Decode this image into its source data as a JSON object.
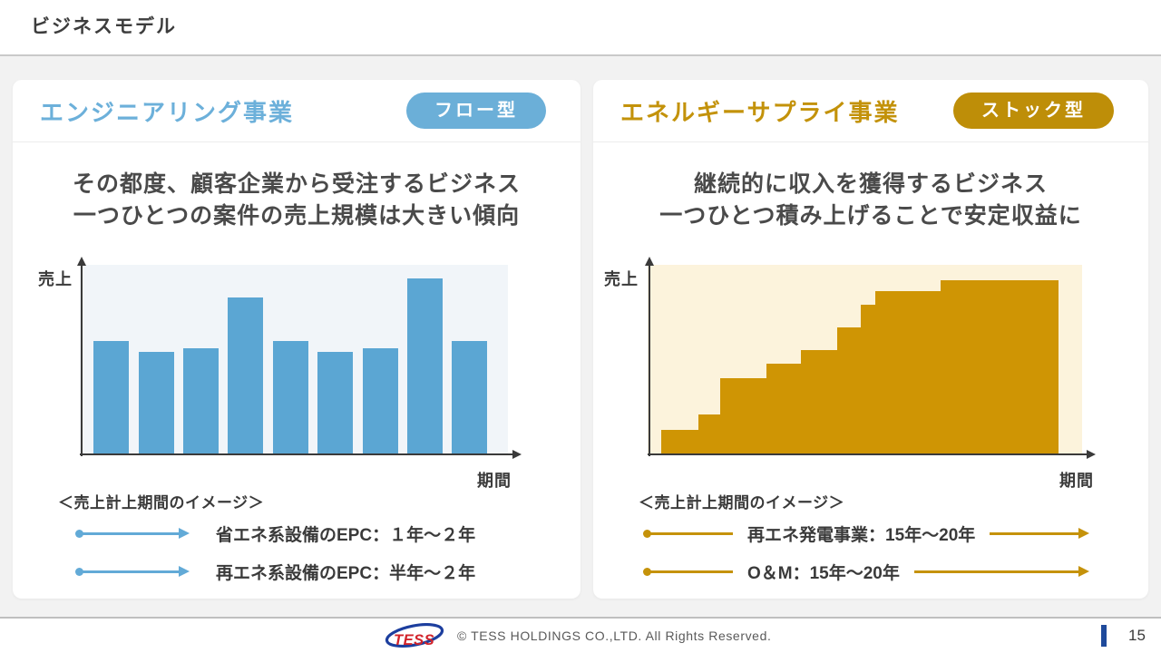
{
  "header": {
    "title": "ビジネスモデル"
  },
  "panels": {
    "engineering": {
      "title": "エンジニアリング事業",
      "badge": "フロー型",
      "accent_color": "#6CB0DA",
      "description": [
        "その都度、顧客企業から受注するビジネス",
        "一つひとつの案件の売上規模は大きい傾向"
      ],
      "legend": {
        "caption": "＜売上計上期間のイメージ＞",
        "items": [
          "省エネ系設備のEPC：１年～２年",
          "再エネ系設備のEPC：半年～２年"
        ]
      }
    },
    "energy_supply": {
      "title": "エネルギーサプライ事業",
      "badge": "ストック型",
      "accent_color": "#C3920A",
      "description": [
        "継続的に収入を獲得するビジネス",
        "一つひとつ積み上げることで安定収益に"
      ],
      "legend": {
        "caption": "＜売上計上期間のイメージ＞",
        "items": [
          "再エネ発電事業：15年～20年",
          "O＆M：15年～20年"
        ]
      }
    }
  },
  "chart_data": [
    {
      "type": "bar",
      "panel": "engineering",
      "title": "売上計上期間のイメージ（フロー型）",
      "ylabel": "売上",
      "xlabel": "期間",
      "unit": "relative_height_0_to_1",
      "values": [
        0.6,
        0.54,
        0.56,
        0.83,
        0.6,
        0.54,
        0.56,
        0.93,
        0.6
      ],
      "bar_color": "#5BA6D3",
      "plot_bg": "#F1F5F9",
      "axis_color": "#3A3A3A",
      "grid": false
    },
    {
      "type": "area",
      "subtype": "step-cumulative",
      "panel": "energy_supply",
      "title": "売上計上期間のイメージ（ストック型）",
      "ylabel": "売上",
      "xlabel": "期間",
      "unit": "relative_0_to_1",
      "steps": [
        {
          "x0": 0.032,
          "x1": 0.116,
          "h": 0.13
        },
        {
          "x0": 0.116,
          "x1": 0.167,
          "h": 0.21
        },
        {
          "x0": 0.167,
          "x1": 0.273,
          "h": 0.4
        },
        {
          "x0": 0.273,
          "x1": 0.353,
          "h": 0.48
        },
        {
          "x0": 0.353,
          "x1": 0.436,
          "h": 0.55
        },
        {
          "x0": 0.436,
          "x1": 0.49,
          "h": 0.67
        },
        {
          "x0": 0.49,
          "x1": 0.524,
          "h": 0.79
        },
        {
          "x0": 0.524,
          "x1": 0.674,
          "h": 0.86
        },
        {
          "x0": 0.674,
          "x1": 0.945,
          "h": 0.92
        }
      ],
      "fill_color": "#CF9504",
      "plot_bg": "#FCF3DC",
      "axis_color": "#3A3A3A",
      "grid": false
    }
  ],
  "footer": {
    "logo": "TESS",
    "copyright": "© TESS HOLDINGS CO.,LTD.  All Rights Reserved.",
    "page_number": "15"
  }
}
